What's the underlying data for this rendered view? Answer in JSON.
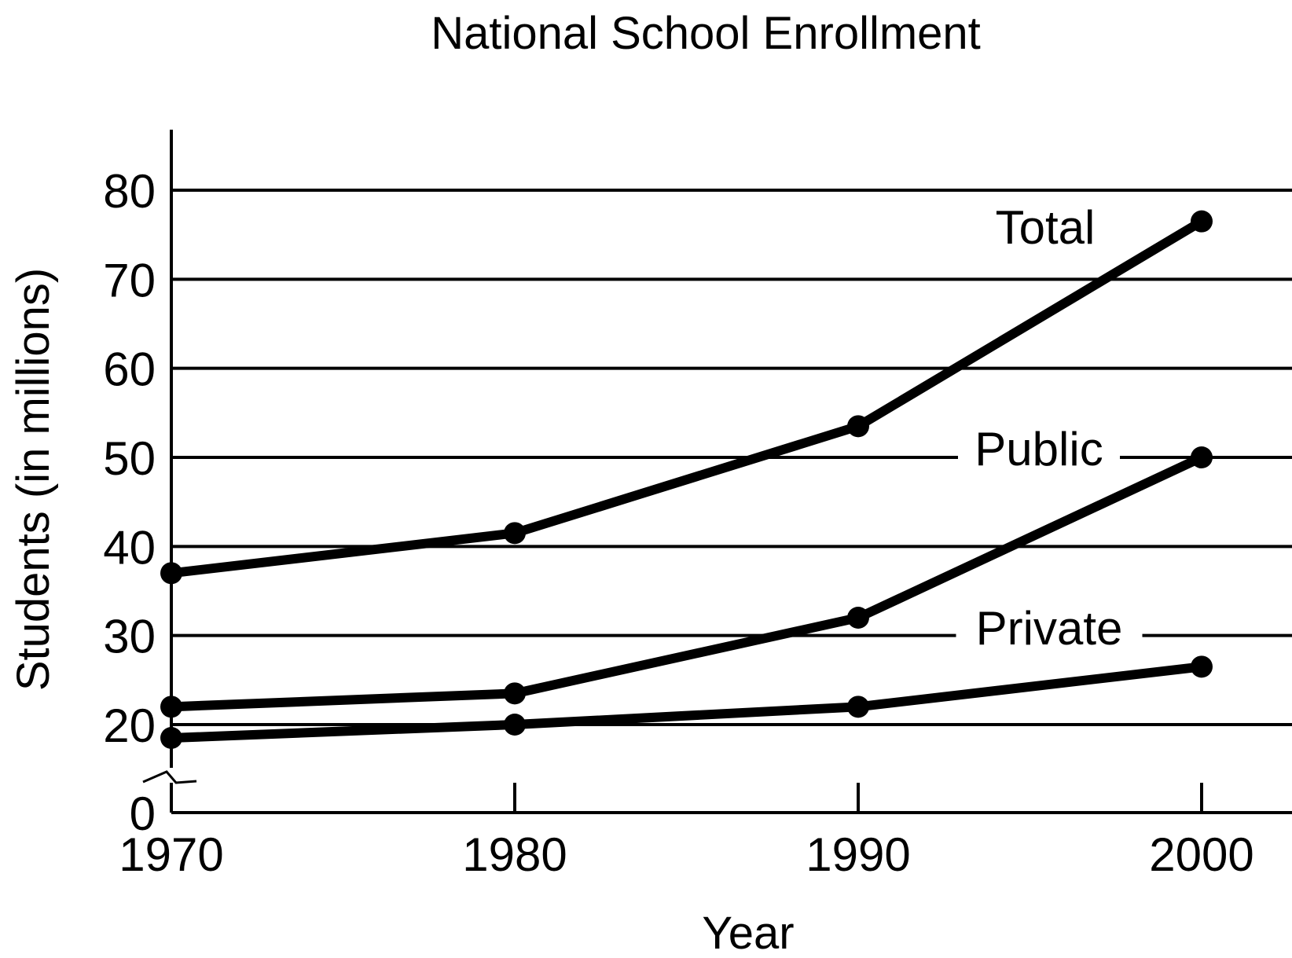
{
  "chart_data": {
    "type": "line",
    "title": "National School Enrollment",
    "xlabel": "Year",
    "ylabel": "Students (in millions)",
    "x": [
      1970,
      1980,
      1990,
      2000
    ],
    "x_ticks": [
      "1970",
      "1980",
      "1990",
      "2000"
    ],
    "y_ticks": [
      "0",
      "20",
      "30",
      "40",
      "50",
      "60",
      "70",
      "80"
    ],
    "ylim": [
      0,
      80
    ],
    "y_axis_break": true,
    "grid": "horizontal",
    "series": [
      {
        "name": "Total",
        "values": [
          37,
          41.5,
          53.5,
          76.5
        ]
      },
      {
        "name": "Public",
        "values": [
          22,
          23.5,
          32,
          50
        ]
      },
      {
        "name": "Private",
        "values": [
          18.5,
          20,
          22,
          26.5
        ]
      }
    ],
    "colors": {
      "line": "#000000",
      "background": "#ffffff"
    }
  }
}
